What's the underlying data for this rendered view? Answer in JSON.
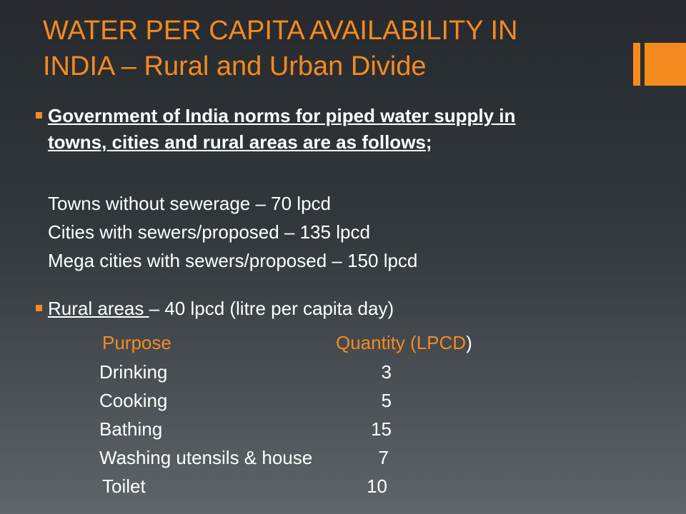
{
  "slide": {
    "title_line1": "WATER PER CAPITA AVAILABILITY IN",
    "title_line2": "INDIA – Rural and Urban Divide"
  },
  "bullet1": {
    "line1": "Government of India norms for piped water supply in",
    "line2_main": "towns, cities and rural areas are as follows",
    "line2_end": ";"
  },
  "norms": [
    "Towns without sewerage – 70 lpcd",
    "Cities with sewers/proposed – 135 lpcd",
    "Mega cities with sewers/proposed – 150 lpcd"
  ],
  "bullet2": {
    "underlined": "Rural areas ",
    "rest": "– 40 lpcd (litre per capita day)"
  },
  "table": {
    "header_purpose": "Purpose",
    "header_quantity": "Quantity (LPCD",
    "header_close": ")",
    "rows": [
      {
        "purpose": "Drinking",
        "quantity": "3"
      },
      {
        "purpose": "Cooking",
        "quantity": "5"
      },
      {
        "purpose": "Bathing",
        "quantity": "15"
      },
      {
        "purpose": "Washing utensils & house",
        "quantity": "7"
      },
      {
        "purpose": "Toilet",
        "quantity": "10"
      }
    ]
  },
  "colors": {
    "accent": "#f58a1f",
    "text": "#ffffff"
  }
}
